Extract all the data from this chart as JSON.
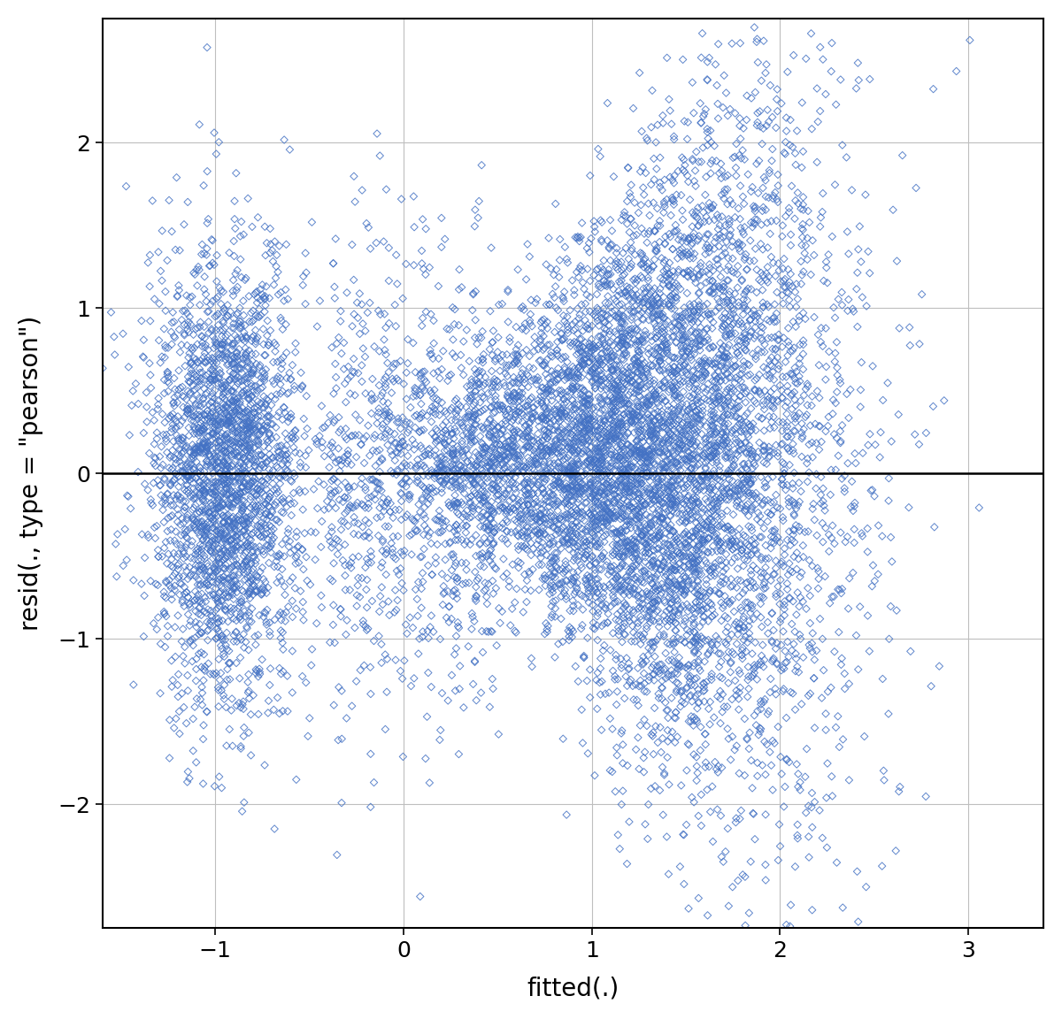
{
  "xlabel": "fitted(.)",
  "ylabel": "resid(., type = \"pearson\")",
  "xlim": [
    -1.6,
    3.4
  ],
  "ylim": [
    -2.75,
    2.75
  ],
  "xticks": [
    -1,
    0,
    1,
    2,
    3
  ],
  "yticks": [
    -2,
    -1,
    0,
    1,
    2
  ],
  "marker_color": "#4472C4",
  "marker_size": 18,
  "background_color": "#FFFFFF",
  "grid_color": "#BEBEBE",
  "hline_y": 0,
  "xlabel_fontsize": 20,
  "ylabel_fontsize": 20,
  "tick_fontsize": 18,
  "n1": 2500,
  "n2": 7000,
  "seed": 42
}
